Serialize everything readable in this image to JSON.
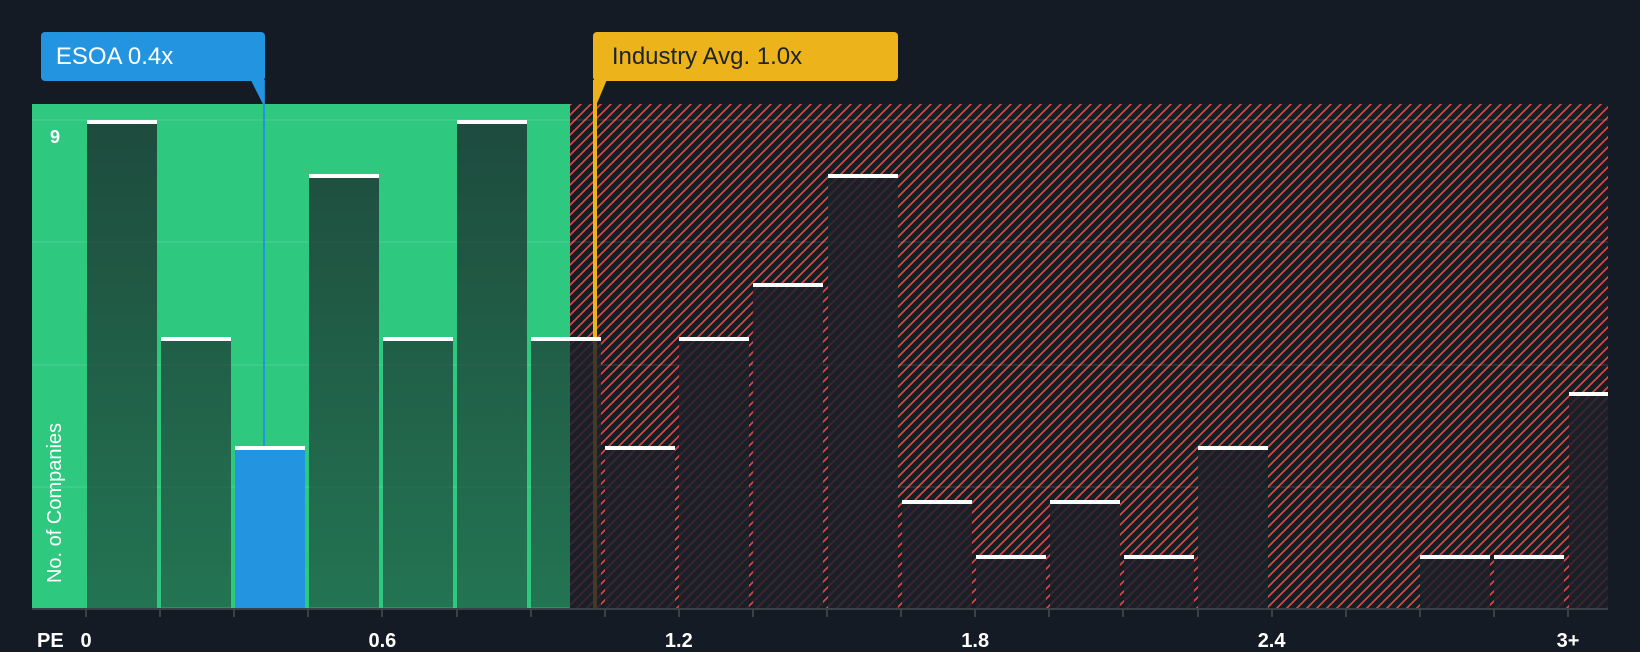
{
  "chart_data": {
    "type": "bar",
    "title": "",
    "xlabel": "PE",
    "ylabel": "No. of Companies",
    "bin_width": 0.15,
    "categories": [
      "0-0.15",
      "0.15-0.3",
      "0.3-0.45",
      "0.45-0.6",
      "0.6-0.75",
      "0.75-0.9",
      "0.9-1.05",
      "1.05-1.2",
      "1.2-1.35",
      "1.35-1.5",
      "1.5-1.65",
      "1.65-1.8",
      "1.8-1.95",
      "1.95-2.1",
      "2.1-2.25",
      "2.25-2.4",
      "2.4-2.55",
      "2.55-2.7",
      "2.7-2.85",
      "2.85-3.0",
      "3+"
    ],
    "values": [
      9,
      5,
      3,
      8,
      5,
      9,
      5,
      3,
      5,
      6,
      8,
      2,
      1,
      2,
      1,
      3,
      0,
      0,
      1,
      1,
      4
    ],
    "highlight_bin_index": 2,
    "ylim": [
      0,
      9
    ],
    "gridlines_y": [
      2.25,
      4.5,
      6.75,
      9
    ],
    "y_ticks": [
      {
        "value": 9,
        "label": "9"
      }
    ],
    "x_ticks": [
      {
        "value": 0,
        "label": "0"
      },
      {
        "value": 0.6,
        "label": "0.6"
      },
      {
        "value": 1.2,
        "label": "1.2"
      },
      {
        "value": 1.8,
        "label": "1.8"
      },
      {
        "value": 2.4,
        "label": "2.4"
      },
      {
        "value": 3.0,
        "label": "3+"
      }
    ],
    "markers": [
      {
        "name": "ESOA",
        "label": "ESOA 0.4x",
        "value": 0.36,
        "color": "#2394e0"
      },
      {
        "name": "Industry Avg.",
        "label": "Industry Avg. 1.0x",
        "value": 1.03,
        "color": "#ecb31b"
      }
    ],
    "regions": [
      {
        "type": "favorable",
        "to": 0.98,
        "color": "#2ec97f"
      },
      {
        "type": "hatched",
        "from": 0.98,
        "color": "#d94444"
      }
    ],
    "legend": "none",
    "grid": true
  }
}
